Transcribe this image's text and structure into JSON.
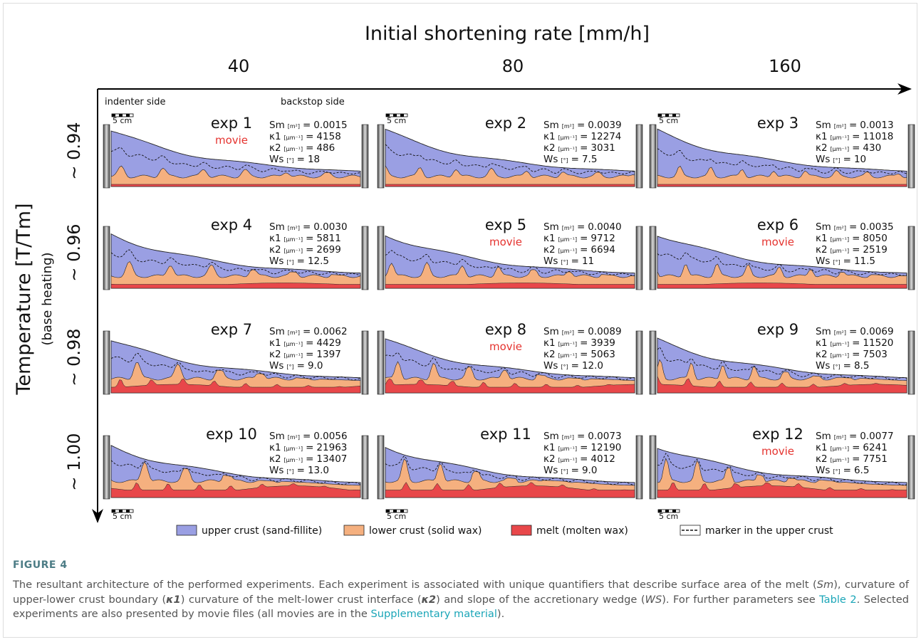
{
  "figure": {
    "x_axis_title": "Initial shortening rate [mm/h]",
    "columns": [
      "40",
      "80",
      "160"
    ],
    "y_axis_title": "Temperature [T/Tm]",
    "y_axis_subtitle": "(base heating)",
    "rows": [
      "~ 0.94",
      "~ 0.96",
      "~ 0.98",
      "~ 1.00"
    ],
    "indenter_label": "indenter side",
    "backstop_label": "backstop side",
    "scale_label": "5 cm",
    "param_symbols": [
      "Sm",
      "κ1",
      "κ2",
      "Ws"
    ],
    "param_units": [
      "[m²]",
      "[μm⁻¹]",
      "[μm⁻¹]",
      "[°]"
    ],
    "separator": "=",
    "experiments": [
      {
        "name": "exp 1",
        "movie": "movie",
        "values": [
          "0.0015",
          "4158",
          "486",
          "18"
        ]
      },
      {
        "name": "exp 2",
        "values": [
          "0.0039",
          "12274",
          "3031",
          "7.5"
        ]
      },
      {
        "name": "exp 3",
        "values": [
          "0.0013",
          "11018",
          "430",
          "10"
        ]
      },
      {
        "name": "exp 4",
        "values": [
          "0.0030",
          "5811",
          "2699",
          "12.5"
        ]
      },
      {
        "name": "exp 5",
        "movie": "movie",
        "values": [
          "0.0040",
          "9712",
          "6694",
          "11"
        ]
      },
      {
        "name": "exp 6",
        "movie": "movie",
        "values": [
          "0.0035",
          "8050",
          "2519",
          "11.5"
        ]
      },
      {
        "name": "exp 7",
        "values": [
          "0.0062",
          "4429",
          "1397",
          "9.0"
        ]
      },
      {
        "name": "exp 8",
        "movie": "movie",
        "values": [
          "0.0089",
          "3939",
          "5063",
          "12.0"
        ]
      },
      {
        "name": "exp 9",
        "values": [
          "0.0069",
          "11520",
          "7503",
          "8.5"
        ]
      },
      {
        "name": "exp 10",
        "values": [
          "0.0056",
          "21963",
          "13407",
          "13.0"
        ]
      },
      {
        "name": "exp 11",
        "values": [
          "0.0073",
          "12190",
          "4012",
          "9.0"
        ]
      },
      {
        "name": "exp 12",
        "movie": "movie",
        "values": [
          "0.0077",
          "6241",
          "7751",
          "6.5"
        ]
      }
    ],
    "legend": [
      {
        "name": "upper crust (sand-fillite)",
        "color": "#9a9fe3"
      },
      {
        "name": "lower crust (solid wax)",
        "color": "#f5b07f"
      },
      {
        "name": "melt (molten wax)",
        "color": "#e8474a"
      },
      {
        "name": "marker in the upper crust"
      }
    ]
  },
  "caption": {
    "label": "FIGURE 4",
    "parts": [
      "The resultant architecture of the performed experiments. Each experiment is associated with unique quantifiers that describe surface area of the melt (",
      "Sm",
      "), curvature of upper-lower crust boundary (",
      "κ1",
      ") curvature of the melt-lower crust interface (",
      "κ2",
      ") and slope of the accretionary wedge (",
      "WS",
      "). For further parameters see ",
      "Table 2",
      ". Selected experiments are also presented by movie files (all movies are in the ",
      "Supplementary material",
      ")."
    ]
  }
}
